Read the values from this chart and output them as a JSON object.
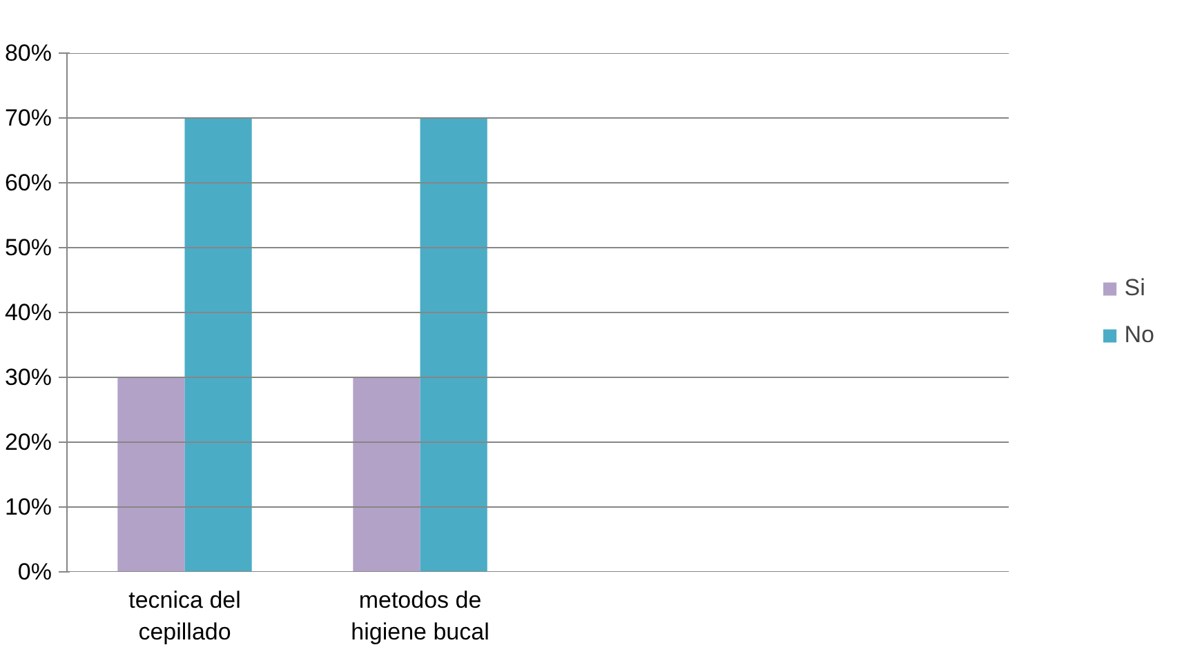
{
  "chart_data": {
    "type": "bar",
    "categories": [
      "tecnica del cepillado",
      "metodos de higiene bucal",
      null,
      null
    ],
    "series": [
      {
        "name": "Si",
        "color": "#b3a2c7",
        "values": [
          30,
          30,
          null,
          null
        ]
      },
      {
        "name": "No",
        "color": "#4bacc6",
        "values": [
          70,
          70,
          null,
          null
        ]
      }
    ],
    "ylim": [
      0,
      80
    ],
    "yticks": [
      {
        "value": 0,
        "label": "0%"
      },
      {
        "value": 10,
        "label": "10%"
      },
      {
        "value": 20,
        "label": "20%"
      },
      {
        "value": 30,
        "label": "30%"
      },
      {
        "value": 40,
        "label": "40%"
      },
      {
        "value": 50,
        "label": "50%"
      },
      {
        "value": 60,
        "label": "60%"
      },
      {
        "value": 70,
        "label": "70%"
      },
      {
        "value": 80,
        "label": "80%"
      }
    ],
    "grid": "y",
    "legend": "right"
  }
}
